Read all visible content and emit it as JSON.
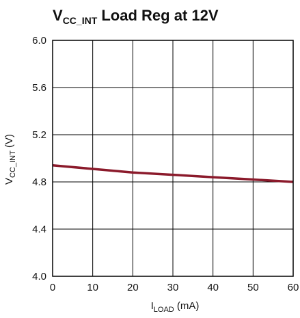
{
  "chart_data": {
    "type": "line",
    "title": {
      "main": "V",
      "sub": "CC_INT",
      "rest": " Load Reg at 12V"
    },
    "xlabel": {
      "main": "I",
      "sub": "LOAD",
      "rest": " (mA)"
    },
    "ylabel": {
      "main": "V",
      "sub": "CC_INT",
      "rest": " (V)"
    },
    "xlim": [
      0,
      60
    ],
    "ylim": [
      4.0,
      6.0
    ],
    "x_ticks": [
      "0",
      "10",
      "20",
      "30",
      "40",
      "50",
      "60"
    ],
    "y_ticks": [
      "6.0",
      "5.6",
      "5.2",
      "4.8",
      "4.4",
      "4.0"
    ],
    "grid": true,
    "series": [
      {
        "color": "#8b1a2b",
        "x": [
          0,
          10,
          20,
          30,
          40,
          50,
          60
        ],
        "y": [
          4.94,
          4.91,
          4.88,
          4.86,
          4.84,
          4.82,
          4.8
        ]
      }
    ]
  }
}
